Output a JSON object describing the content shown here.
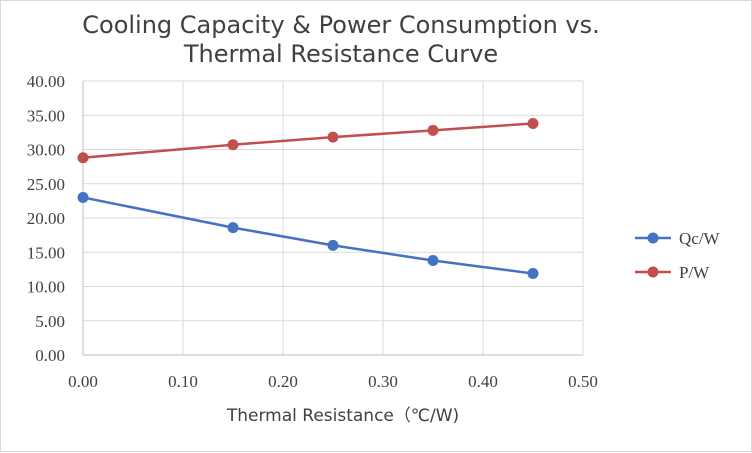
{
  "chart_data": {
    "type": "line",
    "title": "Cooling Capacity & Power Consumption vs.\nThermal Resistance Curve",
    "xlabel": "Thermal Resistance（℃/W)",
    "ylabel": "",
    "xlim": [
      0,
      0.5
    ],
    "ylim": [
      0,
      40
    ],
    "x_ticks": [
      "0.00",
      "0.10",
      "0.20",
      "0.30",
      "0.40",
      "0.50"
    ],
    "y_ticks": [
      "0.00",
      "5.00",
      "10.00",
      "15.00",
      "20.00",
      "25.00",
      "30.00",
      "35.00",
      "40.00"
    ],
    "grid": true,
    "legend": "right",
    "x": [
      0.0,
      0.15,
      0.25,
      0.35,
      0.45
    ],
    "series": [
      {
        "name": "Qc/W",
        "color": "#4472c4",
        "values": [
          23.0,
          18.6,
          16.0,
          13.8,
          11.9
        ]
      },
      {
        "name": "P/W",
        "color": "#c0504d",
        "values": [
          28.8,
          30.7,
          31.8,
          32.8,
          33.8
        ]
      }
    ]
  }
}
